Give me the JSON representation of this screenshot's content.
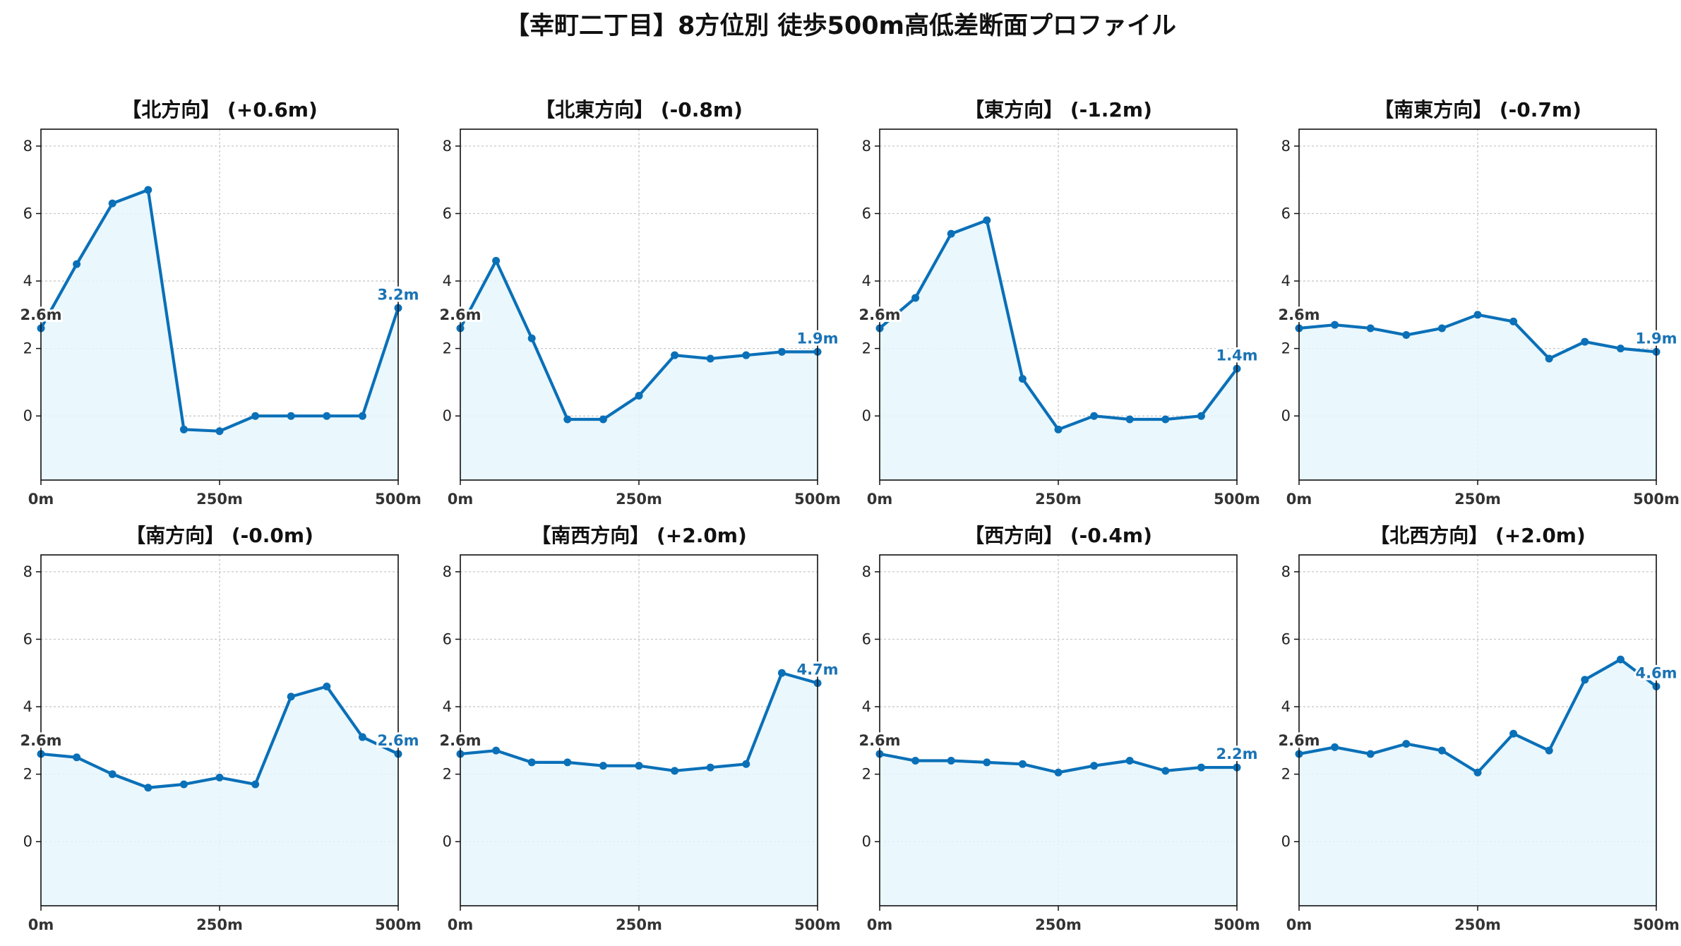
{
  "figure_title": "【幸町二丁目】8方位別 徒歩500m高低差断面プロファイル",
  "colors": {
    "line": "#0a70b8",
    "fill": "#e6f6fc",
    "end_label": "#1a73b5",
    "start_label": "#333333"
  },
  "chart_data": [
    {
      "type": "area",
      "title": "【北方向】 (+0.6m)",
      "start_label": "2.6m",
      "end_label": "3.2m",
      "x": [
        0,
        50,
        100,
        150,
        200,
        250,
        300,
        350,
        400,
        450,
        500
      ],
      "values": [
        2.6,
        4.5,
        6.3,
        6.7,
        -0.4,
        -0.45,
        0,
        0,
        0,
        0,
        3.2
      ],
      "ylim": [
        -1.9,
        8.5
      ],
      "yticks": [
        0,
        2,
        4,
        6,
        8
      ],
      "xticks": [
        0,
        250,
        500
      ],
      "xticklabels": [
        "0m",
        "250m",
        "500m"
      ],
      "grid": true
    },
    {
      "type": "area",
      "title": "【北東方向】 (-0.8m)",
      "start_label": "2.6m",
      "end_label": "1.9m",
      "x": [
        0,
        50,
        100,
        150,
        200,
        250,
        300,
        350,
        400,
        450,
        500
      ],
      "values": [
        2.6,
        4.6,
        2.3,
        -0.1,
        -0.1,
        0.6,
        1.8,
        1.7,
        1.8,
        1.9,
        1.9
      ],
      "ylim": [
        -1.9,
        8.5
      ],
      "yticks": [
        0,
        2,
        4,
        6,
        8
      ],
      "xticks": [
        0,
        250,
        500
      ],
      "xticklabels": [
        "0m",
        "250m",
        "500m"
      ],
      "grid": true
    },
    {
      "type": "area",
      "title": "【東方向】 (-1.2m)",
      "start_label": "2.6m",
      "end_label": "1.4m",
      "x": [
        0,
        50,
        100,
        150,
        200,
        250,
        300,
        350,
        400,
        450,
        500
      ],
      "values": [
        2.6,
        3.5,
        5.4,
        5.8,
        1.1,
        -0.4,
        0,
        -0.1,
        -0.1,
        0,
        1.4
      ],
      "ylim": [
        -1.9,
        8.5
      ],
      "yticks": [
        0,
        2,
        4,
        6,
        8
      ],
      "xticks": [
        0,
        250,
        500
      ],
      "xticklabels": [
        "0m",
        "250m",
        "500m"
      ],
      "grid": true
    },
    {
      "type": "area",
      "title": "【南東方向】 (-0.7m)",
      "start_label": "2.6m",
      "end_label": "1.9m",
      "x": [
        0,
        50,
        100,
        150,
        200,
        250,
        300,
        350,
        400,
        450,
        500
      ],
      "values": [
        2.6,
        2.7,
        2.6,
        2.4,
        2.6,
        3.0,
        2.8,
        1.7,
        2.2,
        2.0,
        1.9
      ],
      "ylim": [
        -1.9,
        8.5
      ],
      "yticks": [
        0,
        2,
        4,
        6,
        8
      ],
      "xticks": [
        0,
        250,
        500
      ],
      "xticklabels": [
        "0m",
        "250m",
        "500m"
      ],
      "grid": true
    },
    {
      "type": "area",
      "title": "【南方向】 (-0.0m)",
      "start_label": "2.6m",
      "end_label": "2.6m",
      "x": [
        0,
        50,
        100,
        150,
        200,
        250,
        300,
        350,
        400,
        450,
        500
      ],
      "values": [
        2.6,
        2.5,
        2.0,
        1.6,
        1.7,
        1.9,
        1.7,
        4.3,
        4.6,
        3.1,
        2.6
      ],
      "ylim": [
        -1.9,
        8.5
      ],
      "yticks": [
        0,
        2,
        4,
        6,
        8
      ],
      "xticks": [
        0,
        250,
        500
      ],
      "xticklabels": [
        "0m",
        "250m",
        "500m"
      ],
      "grid": true
    },
    {
      "type": "area",
      "title": "【南西方向】 (+2.0m)",
      "start_label": "2.6m",
      "end_label": "4.7m",
      "x": [
        0,
        50,
        100,
        150,
        200,
        250,
        300,
        350,
        400,
        450,
        500
      ],
      "values": [
        2.6,
        2.7,
        2.35,
        2.35,
        2.25,
        2.25,
        2.1,
        2.2,
        2.3,
        5.0,
        4.7
      ],
      "ylim": [
        -1.9,
        8.5
      ],
      "yticks": [
        0,
        2,
        4,
        6,
        8
      ],
      "xticks": [
        0,
        250,
        500
      ],
      "xticklabels": [
        "0m",
        "250m",
        "500m"
      ],
      "grid": true
    },
    {
      "type": "area",
      "title": "【西方向】 (-0.4m)",
      "start_label": "2.6m",
      "end_label": "2.2m",
      "x": [
        0,
        50,
        100,
        150,
        200,
        250,
        300,
        350,
        400,
        450,
        500
      ],
      "values": [
        2.6,
        2.4,
        2.4,
        2.35,
        2.3,
        2.05,
        2.25,
        2.4,
        2.1,
        2.2,
        2.2
      ],
      "ylim": [
        -1.9,
        8.5
      ],
      "yticks": [
        0,
        2,
        4,
        6,
        8
      ],
      "xticks": [
        0,
        250,
        500
      ],
      "xticklabels": [
        "0m",
        "250m",
        "500m"
      ],
      "grid": true
    },
    {
      "type": "area",
      "title": "【北西方向】 (+2.0m)",
      "start_label": "2.6m",
      "end_label": "4.6m",
      "x": [
        0,
        50,
        100,
        150,
        200,
        250,
        300,
        350,
        400,
        450,
        500
      ],
      "values": [
        2.6,
        2.8,
        2.6,
        2.9,
        2.7,
        2.05,
        3.2,
        2.7,
        4.8,
        5.4,
        4.6
      ],
      "ylim": [
        -1.9,
        8.5
      ],
      "yticks": [
        0,
        2,
        4,
        6,
        8
      ],
      "xticks": [
        0,
        250,
        500
      ],
      "xticklabels": [
        "0m",
        "250m",
        "500m"
      ],
      "grid": true
    }
  ]
}
